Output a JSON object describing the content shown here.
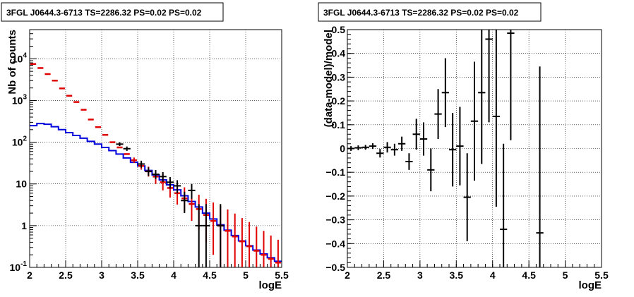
{
  "chart_data": [
    {
      "type": "line",
      "title": "3FGL J0644.3-6713 TS=2286.32 PS=0.02 PS=0.02",
      "xlabel": "logE",
      "ylabel": "Nb of counts",
      "xlim": [
        2,
        5.5
      ],
      "ylim": [
        0.1,
        50000
      ],
      "yscale": "log",
      "grid": true,
      "x_ticks": [
        "2",
        "2.5",
        "3",
        "3.5",
        "4",
        "4.5",
        "5",
        "5.5"
      ],
      "y_ticks": [
        "10⁻¹",
        "1",
        "10",
        "10²",
        "10³",
        "10⁴"
      ],
      "series": [
        {
          "color": "#e00000",
          "style": "points-with-error",
          "x": [
            2.05,
            2.15,
            2.25,
            2.35,
            2.45,
            2.55,
            2.65,
            2.75,
            2.85,
            2.95,
            3.05,
            3.15,
            3.25,
            3.35,
            3.45,
            3.55,
            3.65,
            3.75,
            3.85,
            3.95,
            4.05,
            4.15,
            4.25,
            4.35,
            4.45,
            4.55,
            4.65,
            4.75,
            4.85,
            4.95,
            5.05,
            5.15,
            5.25,
            5.35,
            5.45
          ],
          "y": [
            7500,
            6000,
            4300,
            3000,
            1950,
            1300,
            920,
            600,
            350,
            230,
            150,
            100,
            75,
            52,
            37,
            27,
            20,
            15,
            11,
            8,
            6,
            4.5,
            3.3,
            2.5,
            1.8,
            1.3,
            1.0,
            0.75,
            0.55,
            0.42,
            0.32,
            0.25,
            0.2,
            0.16,
            0.13
          ],
          "err_low": [
            0,
            0,
            0,
            0,
            0,
            0,
            0,
            0,
            0,
            0,
            0,
            0,
            0,
            0,
            5,
            5,
            5,
            5,
            4,
            3.3,
            2.8,
            2.3,
            2,
            1.7,
            1.4,
            1.1,
            0.9,
            0.7,
            0.53,
            0.41,
            0.315,
            0.248,
            0.199,
            0.159,
            0.129
          ],
          "err_high": [
            0,
            0,
            0,
            0,
            0,
            0,
            0,
            0,
            0,
            0,
            0,
            0,
            0,
            0,
            6,
            6,
            6,
            6,
            6,
            5,
            4,
            3.8,
            3.4,
            3,
            2.6,
            2.3,
            2,
            1.7,
            1.4,
            1.1,
            0.9,
            0.7,
            0.55,
            0.42,
            0.33
          ]
        },
        {
          "color": "#0000dd",
          "style": "step",
          "x": [
            2.05,
            2.15,
            2.25,
            2.35,
            2.45,
            2.55,
            2.65,
            2.75,
            2.85,
            2.95,
            3.05,
            3.15,
            3.25,
            3.35,
            3.45,
            3.55,
            3.65,
            3.75,
            3.85,
            3.95,
            4.05,
            4.15,
            4.25,
            4.35,
            4.45,
            4.55,
            4.65,
            4.75,
            4.85,
            4.95,
            5.05,
            5.15,
            5.25,
            5.35,
            5.45
          ],
          "y": [
            250,
            280,
            270,
            235,
            200,
            170,
            145,
            125,
            105,
            90,
            75,
            63,
            52,
            42,
            33,
            27,
            21,
            16.5,
            12.5,
            9.5,
            7.2,
            5.2,
            3.8,
            2.8,
            2.0,
            1.45,
            1.05,
            0.78,
            0.58,
            0.43,
            0.33,
            0.26,
            0.21,
            0.17,
            0.14
          ]
        },
        {
          "color": "#000000",
          "style": "points-with-error",
          "x": [
            3.25,
            3.35,
            3.55,
            3.65,
            3.75,
            3.85,
            3.95,
            4.05,
            4.15,
            4.25,
            4.35,
            4.45,
            4.65
          ],
          "y": [
            90,
            70,
            30,
            20,
            17,
            15,
            11,
            9,
            4,
            7,
            1,
            1,
            1
          ],
          "err_low": [
            9,
            8,
            5.5,
            4.5,
            4,
            3.8,
            3.3,
            3,
            2,
            2.6,
            0.99,
            0.99,
            0.99
          ],
          "err_high": [
            10,
            9,
            6,
            5,
            4.5,
            4.2,
            3.6,
            3.3,
            2.5,
            3,
            2.3,
            2.3,
            2.3
          ]
        }
      ]
    },
    {
      "type": "scatter",
      "title": "3FGL J0644.3-6713 TS=2286.32 PS=0.02 PS=0.02",
      "xlabel": "logE",
      "ylabel": "(data-model)/model",
      "xlim": [
        2,
        5.5
      ],
      "ylim": [
        -0.5,
        0.5
      ],
      "grid": true,
      "x_ticks": [
        "2",
        "2.5",
        "3",
        "3.5",
        "4",
        "4.5",
        "5",
        "5.5"
      ],
      "y_ticks": [
        "−0.5",
        "−0.4",
        "−0.3",
        "−0.2",
        "−0.1",
        "0",
        "0.1",
        "0.2",
        "0.3",
        "0.4",
        "0.5"
      ],
      "series": [
        {
          "color": "#000000",
          "style": "points-with-error",
          "x": [
            2.05,
            2.15,
            2.25,
            2.35,
            2.45,
            2.55,
            2.65,
            2.75,
            2.85,
            2.95,
            3.05,
            3.15,
            3.25,
            3.35,
            3.45,
            3.55,
            3.65,
            3.75,
            3.85,
            3.95,
            4.05,
            4.15,
            4.25,
            4.65
          ],
          "y": [
            0.0,
            0.003,
            0.005,
            0.01,
            -0.02,
            0.005,
            -0.005,
            0.02,
            -0.055,
            0.06,
            0.04,
            -0.09,
            0.145,
            0.235,
            -0.005,
            0.01,
            -0.205,
            0.115,
            0.235,
            0.46,
            0.135,
            -0.34,
            0.485,
            -0.355
          ],
          "err": [
            0.01,
            0.01,
            0.01,
            0.012,
            0.018,
            0.022,
            0.025,
            0.03,
            0.035,
            0.065,
            0.07,
            0.09,
            0.105,
            0.145,
            0.155,
            0.165,
            0.185,
            0.25,
            0.3,
            0.35,
            0.38,
            0.36,
            0.45,
            0.7
          ]
        }
      ]
    }
  ]
}
